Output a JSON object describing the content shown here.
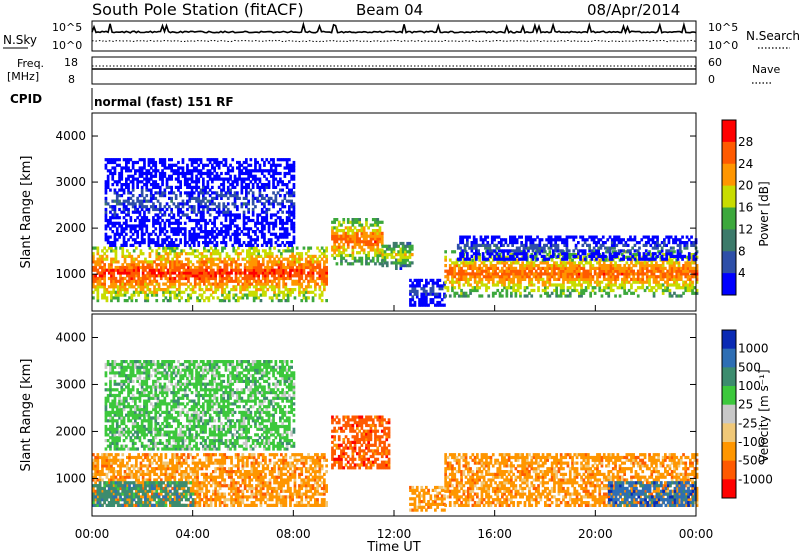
{
  "header": {
    "station": "South Pole Station (fitACF)",
    "beam": "Beam 04",
    "date": "08/Apr/2014"
  },
  "top_panels": {
    "nsky_label": "N.Sky",
    "nsearch_label": "N.Search",
    "noise_ticks": [
      "10^5",
      "10^0"
    ],
    "freq_label": "Freq.",
    "freq_unit": "[MHz]",
    "freq_ticks": [
      "18",
      "8"
    ],
    "nave_label": "Nave",
    "nave_ticks": [
      "60",
      "0"
    ],
    "cpid_label": "CPID",
    "cpid_value": "normal (fast) 151 RF"
  },
  "axes": {
    "xlabel": "Time UT",
    "x_ticks": [
      "00:00",
      "04:00",
      "08:00",
      "12:00",
      "16:00",
      "20:00",
      "00:00"
    ],
    "ylabel": "Slant Range [km]",
    "y_ticks": [
      "1000",
      "2000",
      "3000",
      "4000"
    ],
    "ylim": [
      200,
      4500
    ],
    "xlim_hours": [
      0,
      24
    ]
  },
  "colors": {
    "power": [
      "#0000ff",
      "#2e4fa8",
      "#3c7a6a",
      "#3ca83c",
      "#c8dc00",
      "#ff9600",
      "#ff5a00",
      "#ff0000"
    ],
    "velocity": [
      "#ff0000",
      "#ff5a00",
      "#ff9600",
      "#f0c878",
      "#c8c8c8",
      "#3cc83c",
      "#3c8c6e",
      "#2e6eb4",
      "#0a2ab4"
    ]
  },
  "chart_data": [
    {
      "type": "heatmap",
      "title": "",
      "quantity": "Power",
      "colorbar_label": "Power [dB]",
      "colorbar_ticks": [
        "4",
        "8",
        "12",
        "16",
        "20",
        "24",
        "28"
      ],
      "colorbar_range": [
        0,
        30
      ],
      "xlabel": "",
      "ylabel": "Slant Range [km]",
      "ylim": [
        200,
        4500
      ],
      "x_range_hours": [
        0,
        24
      ],
      "regions": [
        {
          "t0": 0.0,
          "t1": 9.3,
          "r0": 400,
          "r1": 1600,
          "level": 28
        },
        {
          "t0": 9.5,
          "t1": 11.5,
          "r0": 1200,
          "r1": 2200,
          "level": 26
        },
        {
          "t0": 11.5,
          "t1": 12.7,
          "r0": 1100,
          "r1": 1700,
          "level": 20
        },
        {
          "t0": 12.6,
          "t1": 14.0,
          "r0": 300,
          "r1": 900,
          "level": 8
        },
        {
          "t0": 14.0,
          "t1": 24.0,
          "r0": 500,
          "r1": 1500,
          "level": 26
        },
        {
          "t0": 0.5,
          "t1": 8.0,
          "r0": 1600,
          "r1": 3500,
          "level": 6
        },
        {
          "t0": 14.5,
          "t1": 24.0,
          "r0": 1300,
          "r1": 1800,
          "level": 8
        }
      ]
    },
    {
      "type": "heatmap",
      "title": "",
      "quantity": "Velocity",
      "colorbar_label": "Velocity [m s⁻¹]",
      "colorbar_ticks": [
        "1000",
        "500",
        "100",
        "25",
        "-25",
        "-100",
        "-500",
        "-1000"
      ],
      "xlabel": "Time UT",
      "ylabel": "Slant Range [km]",
      "ylim": [
        200,
        4500
      ],
      "x_range_hours": [
        0,
        24
      ],
      "regions": [
        {
          "t0": 0.0,
          "t1": 9.3,
          "r0": 400,
          "r1": 1500,
          "velocity": -100
        },
        {
          "t0": 9.5,
          "t1": 11.8,
          "r0": 1200,
          "r1": 2300,
          "velocity": -500
        },
        {
          "t0": 12.6,
          "t1": 14.0,
          "r0": 300,
          "r1": 800,
          "velocity": -100
        },
        {
          "t0": 14.0,
          "t1": 24.0,
          "r0": 400,
          "r1": 1500,
          "velocity": -100
        },
        {
          "t0": 0.0,
          "t1": 4.0,
          "r0": 400,
          "r1": 900,
          "velocity": 100
        },
        {
          "t0": 20.5,
          "t1": 24.0,
          "r0": 400,
          "r1": 900,
          "velocity": 500
        },
        {
          "t0": 0.5,
          "t1": 8.0,
          "r0": 1600,
          "r1": 3500,
          "velocity": 25
        }
      ]
    }
  ]
}
